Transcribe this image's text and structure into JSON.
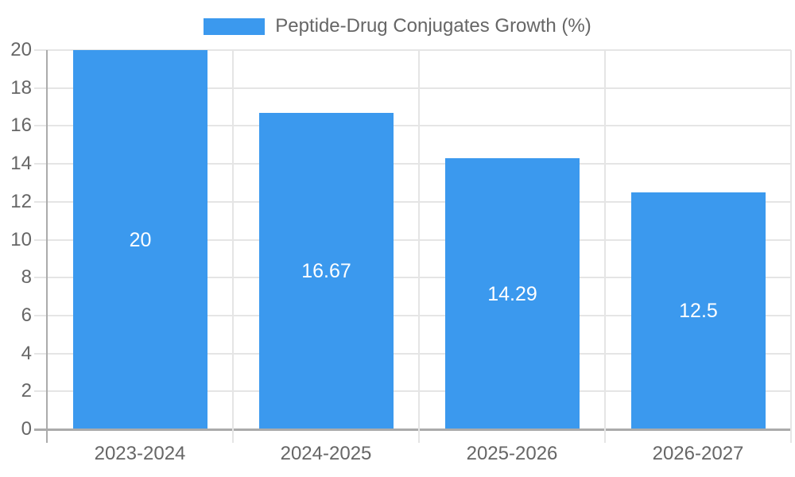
{
  "chart_data": {
    "type": "bar",
    "title": "Peptide-Drug Conjugates Growth (%)",
    "legend": {
      "position": "top",
      "label": "Peptide-Drug Conjugates Growth (%)"
    },
    "categories": [
      "2023-2024",
      "2024-2025",
      "2025-2026",
      "2026-2027"
    ],
    "series": [
      {
        "name": "Peptide-Drug Conjugates Growth (%)",
        "values": [
          20,
          16.67,
          14.29,
          12.5
        ]
      }
    ],
    "value_labels": [
      "20",
      "16.67",
      "14.29",
      "12.5"
    ],
    "xlabel": "",
    "ylabel": "",
    "ylim": [
      0,
      20
    ],
    "yticks": [
      0,
      2,
      4,
      6,
      8,
      10,
      12,
      14,
      16,
      18,
      20
    ],
    "grid": true,
    "legend_swatch": "solid-rect",
    "colors": {
      "bar": "#3b99ee",
      "bar_value_label": "#ffffff",
      "tick_text": "#666666",
      "legend_text": "#666666",
      "gridline": "#e5e5e5",
      "axis_line": "#ababab",
      "background": "#ffffff"
    }
  }
}
